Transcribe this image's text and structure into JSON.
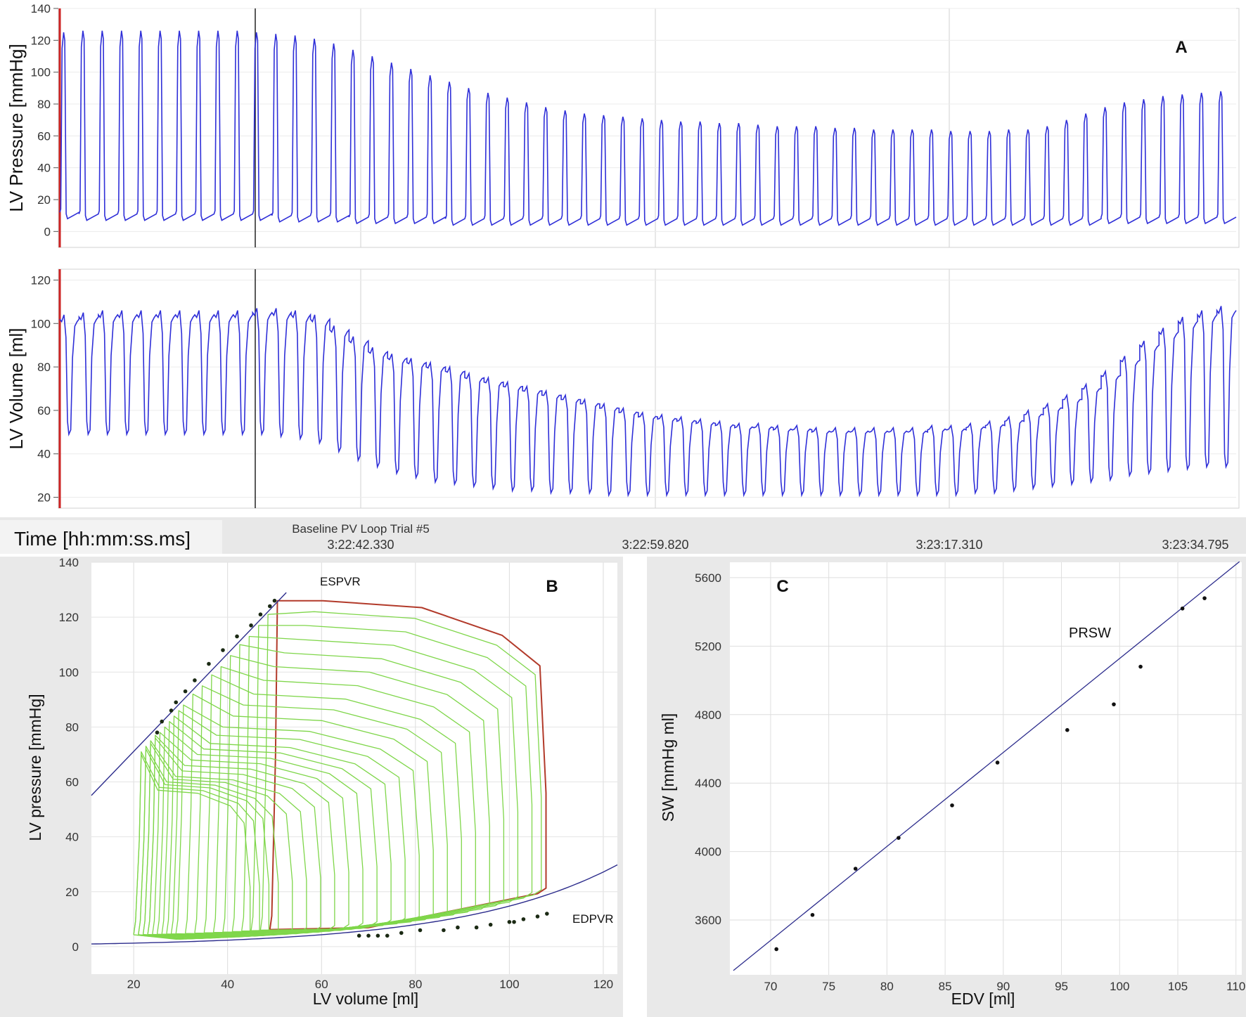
{
  "panel_a": {
    "letter": "A",
    "time_label": "Time [hh:mm:ss.ms]",
    "trial_name": "Baseline PV Loop Trial #5",
    "time_ticks": [
      "3:22:42.330",
      "3:22:59.820",
      "3:23:17.310",
      "3:23:34.795"
    ],
    "colors": {
      "trace": "#2f2fd8",
      "marker_red": "#cc2222",
      "grid": "#d8d8d8"
    }
  },
  "panel_b": {
    "letter": "B",
    "espvr_label": "ESPVR",
    "edpvr_label": "EDPVR"
  },
  "panel_c": {
    "letter": "C",
    "prsw_label": "PRSW"
  },
  "chart_data": [
    {
      "id": "pressure",
      "type": "line",
      "ylabel": "LV Pressure [mmHg]",
      "xlabel": "",
      "ylim": [
        -10,
        140
      ],
      "yticks": [
        0,
        20,
        40,
        60,
        80,
        100,
        120,
        140
      ],
      "grid": true,
      "series": [
        {
          "beats_peak": [
            125,
            126,
            126,
            126,
            126,
            126,
            126,
            126,
            126,
            126,
            125,
            124,
            123,
            121,
            118,
            114,
            110,
            106,
            102,
            98,
            94,
            90,
            87,
            84,
            81,
            78,
            76,
            74,
            73,
            72,
            71,
            70,
            69,
            69,
            68,
            68,
            67,
            66,
            66,
            66,
            65,
            65,
            64,
            64,
            64,
            64,
            63,
            63,
            63,
            64,
            64,
            66,
            70,
            74,
            78,
            81,
            83,
            85,
            86,
            87,
            88
          ],
          "beats_min": [
            8,
            7,
            7,
            7,
            7,
            7,
            7,
            7,
            7,
            7,
            7,
            6,
            6,
            6,
            6,
            5,
            5,
            5,
            5,
            5,
            4,
            4,
            4,
            4,
            4,
            4,
            4,
            4,
            4,
            4,
            4,
            4,
            4,
            4,
            4,
            4,
            4,
            4,
            4,
            4,
            4,
            4,
            4,
            4,
            4,
            4,
            4,
            4,
            4,
            4,
            4,
            4,
            4,
            4,
            5,
            5,
            5,
            5,
            5,
            5,
            5
          ]
        }
      ]
    },
    {
      "id": "volume",
      "type": "line",
      "ylabel": "LV Volume [ml]",
      "xlabel": "",
      "ylim": [
        15,
        125
      ],
      "yticks": [
        20,
        40,
        60,
        80,
        100,
        120
      ],
      "grid": true,
      "series": [
        {
          "beats_max": [
            104,
            105,
            106,
            106,
            106,
            106,
            106,
            106,
            106,
            106,
            107,
            107,
            106,
            104,
            99,
            94,
            89,
            86,
            84,
            82,
            80,
            77,
            75,
            73,
            71,
            69,
            67,
            65,
            63,
            61,
            59,
            58,
            57,
            56,
            55,
            54,
            54,
            53,
            53,
            52,
            52,
            52,
            52,
            52,
            52,
            53,
            53,
            54,
            55,
            57,
            60,
            63,
            67,
            72,
            78,
            85,
            92,
            98,
            103,
            106,
            108
          ],
          "beats_min": [
            49,
            49,
            49,
            49,
            49,
            49,
            49,
            49,
            49,
            49,
            49,
            48,
            47,
            45,
            41,
            37,
            34,
            31,
            29,
            27,
            26,
            25,
            24,
            23,
            23,
            22,
            22,
            22,
            21,
            21,
            21,
            21,
            21,
            21,
            21,
            21,
            21,
            21,
            21,
            21,
            21,
            21,
            21,
            21,
            21,
            21,
            21,
            22,
            22,
            23,
            24,
            25,
            26,
            27,
            28,
            30,
            31,
            32,
            33,
            34,
            34
          ]
        }
      ]
    },
    {
      "id": "pv_loops",
      "type": "line",
      "xlabel": "LV volume [ml]",
      "ylabel": "LV pressure [mmHg]",
      "xlim": [
        11,
        123
      ],
      "ylim": [
        -10,
        140
      ],
      "xticks": [
        20,
        40,
        60,
        80,
        100,
        120
      ],
      "yticks": [
        0,
        20,
        40,
        60,
        80,
        100,
        120,
        140
      ],
      "grid": true,
      "espvr": {
        "slope": 1.78,
        "intercept": 35.5
      },
      "edpvr": {
        "a": 0.7,
        "b": 0.0305
      },
      "loops": [
        {
          "ved": 107,
          "ves": 50,
          "pes": 126,
          "pmax": 126
        },
        {
          "ved": 106,
          "ves": 48,
          "pes": 121,
          "pmax": 122
        },
        {
          "ved": 104,
          "ves": 46,
          "pes": 117,
          "pmax": 117
        },
        {
          "ved": 101,
          "ves": 44,
          "pes": 113,
          "pmax": 112
        },
        {
          "ved": 98,
          "ves": 42,
          "pes": 110,
          "pmax": 107
        },
        {
          "ved": 95,
          "ves": 40,
          "pes": 106,
          "pmax": 102
        },
        {
          "ved": 92,
          "ves": 38,
          "pes": 102,
          "pmax": 97
        },
        {
          "ved": 89,
          "ves": 36,
          "pes": 99,
          "pmax": 92
        },
        {
          "ved": 86,
          "ves": 34,
          "pes": 95,
          "pmax": 88
        },
        {
          "ved": 83,
          "ves": 32,
          "pes": 92,
          "pmax": 84
        },
        {
          "ved": 80,
          "ves": 30,
          "pes": 88,
          "pmax": 80
        },
        {
          "ved": 77,
          "ves": 29,
          "pes": 86,
          "pmax": 77
        },
        {
          "ved": 74,
          "ves": 28,
          "pes": 84,
          "pmax": 74
        },
        {
          "ved": 71,
          "ves": 27,
          "pes": 82,
          "pmax": 72
        },
        {
          "ved": 68,
          "ves": 26,
          "pes": 80,
          "pmax": 70
        },
        {
          "ved": 65,
          "ves": 25,
          "pes": 78,
          "pmax": 68
        },
        {
          "ved": 62,
          "ves": 24,
          "pes": 77,
          "pmax": 66
        },
        {
          "ved": 59,
          "ves": 24,
          "pes": 76,
          "pmax": 64
        },
        {
          "ved": 56,
          "ves": 23,
          "pes": 75,
          "pmax": 62
        },
        {
          "ved": 53,
          "ves": 23,
          "pes": 74,
          "pmax": 61
        },
        {
          "ved": 50,
          "ves": 22,
          "pes": 73,
          "pmax": 60
        },
        {
          "ved": 48,
          "ves": 22,
          "pes": 72,
          "pmax": 59
        },
        {
          "ved": 46,
          "ves": 21,
          "pes": 71,
          "pmax": 58
        },
        {
          "ved": 44,
          "ves": 21,
          "pes": 70,
          "pmax": 57
        }
      ],
      "espvr_points": [
        [
          50,
          126
        ],
        [
          49,
          124
        ],
        [
          47,
          121
        ],
        [
          45,
          117
        ],
        [
          42,
          113
        ],
        [
          39,
          108
        ],
        [
          36,
          103
        ],
        [
          33,
          97
        ],
        [
          31,
          93
        ],
        [
          29,
          89
        ],
        [
          28,
          86
        ],
        [
          26,
          82
        ],
        [
          25,
          78
        ]
      ],
      "edpvr_points": [
        [
          108,
          12
        ],
        [
          106,
          11
        ],
        [
          103,
          10
        ],
        [
          101,
          9
        ],
        [
          100,
          9
        ],
        [
          96,
          8
        ],
        [
          93,
          7
        ],
        [
          89,
          7
        ],
        [
          86,
          6
        ],
        [
          81,
          6
        ],
        [
          77,
          5
        ],
        [
          74,
          4
        ],
        [
          72,
          4
        ],
        [
          70,
          4
        ],
        [
          68,
          4
        ]
      ]
    },
    {
      "id": "prsw",
      "type": "scatter",
      "xlabel": "EDV [ml]",
      "ylabel": "SW [mmHg ml]",
      "xlim": [
        66.5,
        110.5
      ],
      "ylim": [
        3280,
        5690
      ],
      "xticks": [
        70,
        75,
        80,
        85,
        90,
        95,
        100,
        105,
        110
      ],
      "yticks": [
        3600,
        4000,
        4400,
        4800,
        5200,
        5600
      ],
      "grid": true,
      "fit": {
        "slope": 54.9,
        "intercept": -362
      },
      "x": [
        70.5,
        73.6,
        77.3,
        81.0,
        85.6,
        89.5,
        95.5,
        99.5,
        101.8,
        105.4,
        107.3
      ],
      "y": [
        3430,
        3630,
        3900,
        4080,
        4270,
        4520,
        4710,
        4860,
        5080,
        5420,
        5480
      ]
    }
  ]
}
